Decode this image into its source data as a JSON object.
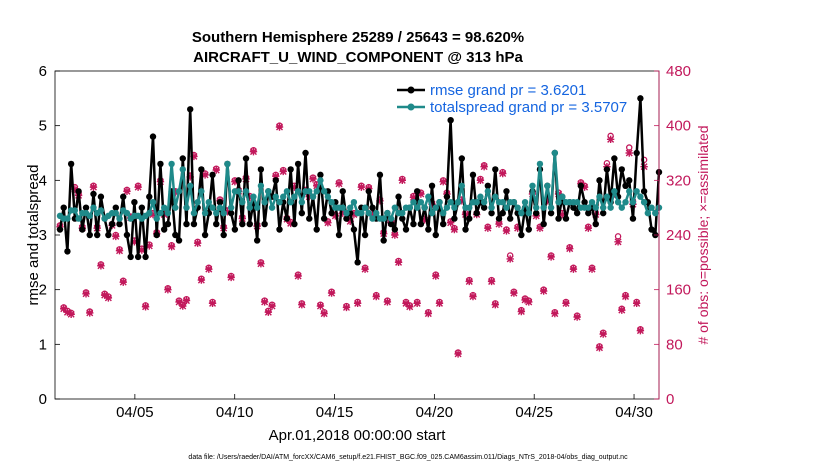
{
  "chart_data": {
    "type": "line",
    "title_line1": "Southern Hemisphere 25289 / 25643 = 98.620%",
    "title_line2": "AIRCRAFT_U_WIND_COMPONENT @ 313 hPa",
    "xlabel": "Apr.01,2018 00:00:00 start",
    "ylabel_left": "rmse and totalspread",
    "ylabel_right": "# of obs: o=possible; ×=assimilated",
    "footer": "data file: /Users/raeder/DAI/ATM_forcXX/CAM6_setup/f.e21.FHIST_BGC.f09_025.CAM6assim.011/Diags_NTrS_2018-04/obs_diag_output.nc",
    "xlim": [
      1.0,
      31.25
    ],
    "ylim_left": [
      0,
      6
    ],
    "ylim_right": [
      0,
      480
    ],
    "x_ticks": [
      5,
      10,
      15,
      20,
      25,
      30
    ],
    "x_tick_labels": [
      "04/05",
      "04/10",
      "04/15",
      "04/20",
      "04/25",
      "04/30"
    ],
    "y_left_ticks": [
      "0",
      "1",
      "2",
      "3",
      "4",
      "5",
      "6"
    ],
    "y_right_ticks": [
      "0",
      "80",
      "160",
      "240",
      "320",
      "400",
      "480"
    ],
    "grid": false,
    "legend": [
      {
        "label": "rmse grand pr = 3.6201",
        "color": "#000000"
      },
      {
        "label": "totalspread grand pr = 3.5707",
        "color": "#1f8a8a"
      }
    ],
    "colors": {
      "rmse": "#000000",
      "spread": "#1f8a8a",
      "obs": "#c2185b"
    },
    "series": [
      {
        "name": "rmse",
        "values": [
          3.1,
          3.5,
          2.7,
          4.3,
          3.3,
          3.8,
          3.1,
          3.5,
          3.0,
          3.75,
          3.0,
          3.7,
          3.3,
          3.0,
          3.2,
          3.5,
          3.2,
          3.7,
          3.0,
          2.6,
          3.6,
          2.6,
          3.5,
          2.6,
          3.7,
          4.8,
          3.0,
          4.3,
          3.1,
          3.2,
          3.8,
          3.0,
          2.9,
          4.4,
          3.2,
          5.3,
          3.2,
          3.5,
          4.2,
          3.0,
          3.4,
          4.1,
          3.2,
          3.6,
          3.0,
          4.3,
          3.4,
          3.1,
          4.0,
          3.2,
          4.4,
          3.2,
          3.6,
          2.9,
          4.2,
          3.2,
          3.8,
          3.7,
          4.0,
          3.1,
          3.6,
          3.3,
          4.2,
          3.2,
          4.3,
          3.4,
          4.5,
          3.3,
          3.7,
          3.1,
          4.1,
          3.3,
          3.8,
          3.4,
          3.6,
          3.0,
          3.8,
          3.3,
          3.4,
          3.1,
          2.5,
          3.5,
          3.0,
          3.8,
          3.5,
          3.3,
          4.1,
          2.9,
          3.4,
          3.2,
          3.1,
          3.7,
          3.3,
          3.1,
          3.5,
          3.2,
          3.8,
          3.2,
          3.5,
          3.1,
          3.9,
          3.0,
          3.6,
          3.2,
          3.7,
          5.1,
          3.3,
          3.6,
          4.4,
          3.1,
          3.3,
          4.1,
          3.4,
          3.6,
          3.5,
          3.9,
          3.4,
          4.2,
          3.3,
          3.4,
          3.8,
          3.3,
          3.6,
          3.4,
          3.0,
          3.5,
          3.1,
          3.8,
          3.4,
          4.2,
          3.2,
          3.9,
          3.4,
          4.5,
          3.3,
          3.7,
          3.3,
          3.6,
          3.5,
          3.4,
          3.9,
          3.6,
          3.4,
          3.5,
          3.2,
          4.0,
          3.4,
          4.2,
          3.6,
          4.4,
          3.7,
          4.2,
          3.9,
          4.0,
          3.3,
          4.5,
          5.5,
          3.8,
          3.6,
          3.1,
          3.0,
          4.15
        ]
      },
      {
        "name": "totalspread",
        "values": [
          3.35,
          3.3,
          3.3,
          3.45,
          3.45,
          3.3,
          3.4,
          3.4,
          3.35,
          3.5,
          3.4,
          3.45,
          3.3,
          3.35,
          3.4,
          3.4,
          3.3,
          3.45,
          3.4,
          3.3,
          3.35,
          3.35,
          3.3,
          3.35,
          3.4,
          3.6,
          3.3,
          3.4,
          3.5,
          3.4,
          4.3,
          3.5,
          3.8,
          4.2,
          3.5,
          3.9,
          3.4,
          3.6,
          3.8,
          3.4,
          3.6,
          3.5,
          3.4,
          3.5,
          3.4,
          4.3,
          3.5,
          3.8,
          3.8,
          3.6,
          3.8,
          3.5,
          3.7,
          3.5,
          3.9,
          3.6,
          3.8,
          3.5,
          3.7,
          3.6,
          3.7,
          3.8,
          3.6,
          3.7,
          3.8,
          3.6,
          3.8,
          3.8,
          3.7,
          3.8,
          4.0,
          3.8,
          3.7,
          3.6,
          3.5,
          3.5,
          3.5,
          3.4,
          3.5,
          3.6,
          3.4,
          3.4,
          3.5,
          3.4,
          3.3,
          3.4,
          3.3,
          3.3,
          3.4,
          3.3,
          3.5,
          3.4,
          3.4,
          3.5,
          3.5,
          3.6,
          3.5,
          3.6,
          3.5,
          3.7,
          3.4,
          3.5,
          3.6,
          3.4,
          3.5,
          3.6,
          3.5,
          3.6,
          3.9,
          3.5,
          3.5,
          3.6,
          3.6,
          3.7,
          3.6,
          3.8,
          3.5,
          3.7,
          3.6,
          3.6,
          3.5,
          3.6,
          3.6,
          3.5,
          3.4,
          3.6,
          3.4,
          3.9,
          3.5,
          4.3,
          3.5,
          3.9,
          3.5,
          4.5,
          3.6,
          3.7,
          3.6,
          3.6,
          3.6,
          3.6,
          3.5,
          3.5,
          3.5,
          3.6,
          3.5,
          3.7,
          3.5,
          3.7,
          3.5,
          3.8,
          3.6,
          3.5,
          3.6,
          3.8,
          3.6,
          3.8,
          3.7,
          3.6,
          3.4,
          3.5,
          3.4,
          3.5
        ]
      },
      {
        "name": "obs_assimilated",
        "values": [
          252,
          132,
          127,
          124,
          307,
          298,
          250,
          154,
          126,
          310,
          250,
          195,
          152,
          148,
          254,
          238,
          217,
          171,
          304,
          265,
          230,
          310,
          218,
          135,
          224,
          270,
          242,
          318,
          270,
          160,
          223,
          302,
          142,
          136,
          144,
          325,
          355,
          228,
          174,
          328,
          190,
          140,
          335,
          290,
          250,
          274,
          178,
          318,
          304,
          264,
          322,
          295,
          362,
          253,
          198,
          142,
          127,
          136,
          326,
          398,
          333,
          263,
          257,
          310,
          180,
          138,
          304,
          296,
          322,
          312,
          136,
          125,
          258,
          155,
          268,
          315,
          272,
          134,
          260,
          270,
          140,
          310,
          190,
          308,
          270,
          150,
          290,
          242,
          142,
          258,
          240,
          200,
          320,
          140,
          135,
          295,
          140,
          300,
          262,
          125,
          285,
          180,
          140,
          318,
          300,
          258,
          248,
          66,
          290,
          270,
          172,
          150,
          270,
          320,
          340,
          250,
          172,
          138,
          256,
          330,
          246,
          205,
          155,
          250,
          128,
          145,
          142,
          300,
          268,
          250,
          158,
          290,
          208,
          125,
          300,
          270,
          140,
          220,
          190,
          120,
          315,
          310,
          250,
          190,
          270,
          75,
          95,
          340,
          380,
          300,
          230,
          130,
          150,
          360,
          285,
          140,
          100,
          340
        ]
      },
      {
        "name": "obs_possible",
        "values": [
          254,
          134,
          129,
          126,
          310,
          300,
          252,
          156,
          128,
          312,
          252,
          197,
          154,
          150,
          256,
          240,
          219,
          173,
          306,
          267,
          232,
          312,
          220,
          137,
          226,
          272,
          244,
          320,
          272,
          162,
          225,
          304,
          144,
          138,
          146,
          327,
          357,
          230,
          176,
          330,
          192,
          142,
          337,
          292,
          252,
          276,
          180,
          320,
          306,
          266,
          324,
          297,
          364,
          255,
          200,
          144,
          129,
          138,
          328,
          400,
          335,
          265,
          259,
          312,
          182,
          140,
          306,
          298,
          324,
          314,
          138,
          127,
          260,
          157,
          270,
          317,
          274,
          136,
          262,
          272,
          142,
          312,
          192,
          310,
          272,
          152,
          292,
          244,
          144,
          260,
          242,
          202,
          322,
          142,
          137,
          297,
          142,
          302,
          264,
          127,
          287,
          182,
          142,
          320,
          302,
          260,
          250,
          68,
          292,
          272,
          174,
          152,
          272,
          322,
          342,
          252,
          174,
          140,
          258,
          332,
          248,
          210,
          157,
          252,
          130,
          147,
          144,
          302,
          270,
          252,
          160,
          292,
          210,
          127,
          302,
          272,
          142,
          222,
          192,
          122,
          317,
          312,
          252,
          192,
          272,
          77,
          97,
          345,
          385,
          302,
          238,
          132,
          152,
          368,
          290,
          142,
          102,
          350
        ]
      }
    ]
  }
}
